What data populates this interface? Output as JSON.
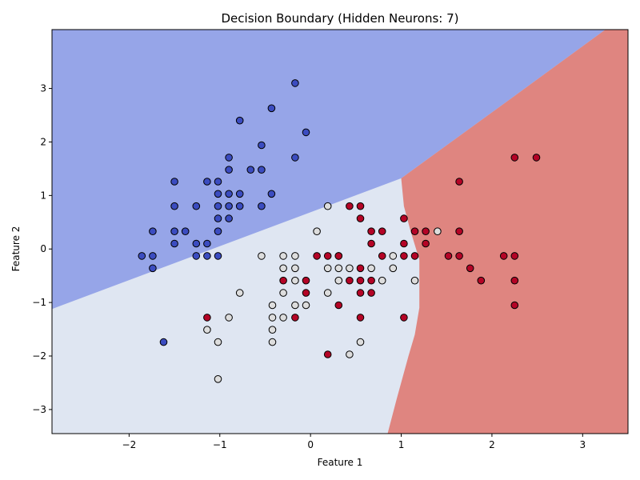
{
  "chart_data": {
    "type": "scatter",
    "title": "Decision Boundary (Hidden Neurons: 7)",
    "xlabel": "Feature 1",
    "ylabel": "Feature 2",
    "xlim": [
      -2.85,
      3.5
    ],
    "ylim": [
      -3.45,
      4.1
    ],
    "xticks": [
      -2,
      -1,
      0,
      1,
      2,
      3
    ],
    "yticks": [
      -3,
      -2,
      -1,
      0,
      1,
      2,
      3
    ],
    "xtick_labels": [
      "−2",
      "−1",
      "0",
      "1",
      "2",
      "3"
    ],
    "ytick_labels": [
      "−3",
      "−2",
      "−1",
      "0",
      "1",
      "2",
      "3"
    ],
    "grid": false,
    "legend": "none",
    "regions": [
      {
        "class": 0,
        "color": "#96a5e8",
        "boundary_with": 1,
        "boundary_line": [
          [
            -2.85,
            -1.12
          ],
          [
            1.0,
            1.32
          ]
        ]
      },
      {
        "class": 1,
        "color": "#dfe6f2"
      },
      {
        "class": 2,
        "color": "#df8580",
        "boundary_with_0": [
          [
            1.0,
            1.32
          ],
          [
            2.2,
            2.8
          ],
          [
            3.25,
            4.1
          ]
        ],
        "boundary_with_1": [
          [
            1.0,
            1.32
          ],
          [
            1.03,
            0.8
          ],
          [
            1.1,
            0.35
          ],
          [
            1.2,
            -0.2
          ],
          [
            1.2,
            -1.1
          ],
          [
            1.15,
            -1.6
          ],
          [
            1.08,
            -2.0
          ],
          [
            0.95,
            -2.8
          ],
          [
            0.85,
            -3.45
          ]
        ]
      }
    ],
    "series": [
      {
        "class": 0,
        "color": "#3b4cc0",
        "points": [
          [
            -0.17,
            3.1
          ],
          [
            -0.43,
            2.63
          ],
          [
            -0.78,
            2.4
          ],
          [
            -0.05,
            2.18
          ],
          [
            -0.54,
            1.94
          ],
          [
            -0.9,
            1.71
          ],
          [
            -0.17,
            1.71
          ],
          [
            -0.66,
            1.48
          ],
          [
            -0.54,
            1.48
          ],
          [
            -0.9,
            1.48
          ],
          [
            -1.5,
            1.26
          ],
          [
            -1.14,
            1.26
          ],
          [
            -1.02,
            1.26
          ],
          [
            -1.02,
            1.03
          ],
          [
            -0.9,
            1.03
          ],
          [
            -0.78,
            1.03
          ],
          [
            -0.43,
            1.03
          ],
          [
            -1.5,
            0.8
          ],
          [
            -1.26,
            0.8
          ],
          [
            -1.02,
            0.8
          ],
          [
            -0.9,
            0.8
          ],
          [
            -0.78,
            0.8
          ],
          [
            -0.54,
            0.8
          ],
          [
            -1.02,
            0.57
          ],
          [
            -0.9,
            0.57
          ],
          [
            -1.74,
            0.33
          ],
          [
            -1.5,
            0.33
          ],
          [
            -1.38,
            0.33
          ],
          [
            -1.02,
            0.33
          ],
          [
            -1.5,
            0.1
          ],
          [
            -1.26,
            0.1
          ],
          [
            -1.14,
            0.1
          ],
          [
            -1.86,
            -0.13
          ],
          [
            -1.74,
            -0.13
          ],
          [
            -1.26,
            -0.13
          ],
          [
            -1.14,
            -0.13
          ],
          [
            -1.02,
            -0.13
          ],
          [
            -1.74,
            -0.36
          ],
          [
            -1.62,
            -1.74
          ]
        ]
      },
      {
        "class": 1,
        "color": "#dddddd",
        "points": [
          [
            0.19,
            0.8
          ],
          [
            0.07,
            0.33
          ],
          [
            -0.54,
            -0.13
          ],
          [
            -0.3,
            -0.13
          ],
          [
            -0.17,
            -0.13
          ],
          [
            0.31,
            -0.13
          ],
          [
            0.91,
            -0.13
          ],
          [
            -0.3,
            -0.36
          ],
          [
            -0.17,
            -0.36
          ],
          [
            0.19,
            -0.36
          ],
          [
            0.31,
            -0.36
          ],
          [
            0.43,
            -0.36
          ],
          [
            0.67,
            -0.36
          ],
          [
            0.91,
            -0.36
          ],
          [
            -0.17,
            -0.59
          ],
          [
            0.31,
            -0.59
          ],
          [
            0.79,
            -0.59
          ],
          [
            1.15,
            -0.59
          ],
          [
            -0.78,
            -0.82
          ],
          [
            -0.3,
            -0.82
          ],
          [
            0.19,
            -0.82
          ],
          [
            -0.42,
            -1.05
          ],
          [
            -0.17,
            -1.05
          ],
          [
            -0.05,
            -1.05
          ],
          [
            -0.9,
            -1.28
          ],
          [
            -0.42,
            -1.28
          ],
          [
            -0.3,
            -1.28
          ],
          [
            -1.14,
            -1.51
          ],
          [
            -0.42,
            -1.51
          ],
          [
            -1.02,
            -1.74
          ],
          [
            -0.42,
            -1.74
          ],
          [
            0.55,
            -1.74
          ],
          [
            0.43,
            -1.97
          ],
          [
            -1.02,
            -2.43
          ],
          [
            1.4,
            0.33
          ]
        ]
      },
      {
        "class": 2,
        "color": "#b40426",
        "points": [
          [
            2.25,
            1.71
          ],
          [
            2.49,
            1.71
          ],
          [
            1.64,
            1.26
          ],
          [
            0.43,
            0.8
          ],
          [
            0.55,
            0.8
          ],
          [
            0.55,
            0.57
          ],
          [
            1.03,
            0.57
          ],
          [
            0.67,
            0.33
          ],
          [
            0.79,
            0.33
          ],
          [
            1.15,
            0.33
          ],
          [
            1.27,
            0.33
          ],
          [
            1.64,
            0.33
          ],
          [
            0.67,
            0.1
          ],
          [
            1.03,
            0.1
          ],
          [
            1.27,
            0.1
          ],
          [
            0.07,
            -0.13
          ],
          [
            0.19,
            -0.13
          ],
          [
            0.31,
            -0.13
          ],
          [
            0.79,
            -0.13
          ],
          [
            1.03,
            -0.13
          ],
          [
            1.15,
            -0.13
          ],
          [
            1.52,
            -0.13
          ],
          [
            1.64,
            -0.13
          ],
          [
            2.13,
            -0.13
          ],
          [
            2.25,
            -0.13
          ],
          [
            0.55,
            -0.36
          ],
          [
            1.76,
            -0.36
          ],
          [
            -0.3,
            -0.59
          ],
          [
            -0.05,
            -0.59
          ],
          [
            0.43,
            -0.59
          ],
          [
            0.55,
            -0.59
          ],
          [
            0.67,
            -0.59
          ],
          [
            1.88,
            -0.59
          ],
          [
            2.25,
            -0.59
          ],
          [
            -0.05,
            -0.82
          ],
          [
            0.55,
            -0.82
          ],
          [
            0.67,
            -0.82
          ],
          [
            0.31,
            -1.05
          ],
          [
            2.25,
            -1.05
          ],
          [
            -1.14,
            -1.28
          ],
          [
            -0.17,
            -1.28
          ],
          [
            0.55,
            -1.28
          ],
          [
            1.03,
            -1.28
          ],
          [
            0.19,
            -1.97
          ]
        ]
      }
    ]
  }
}
